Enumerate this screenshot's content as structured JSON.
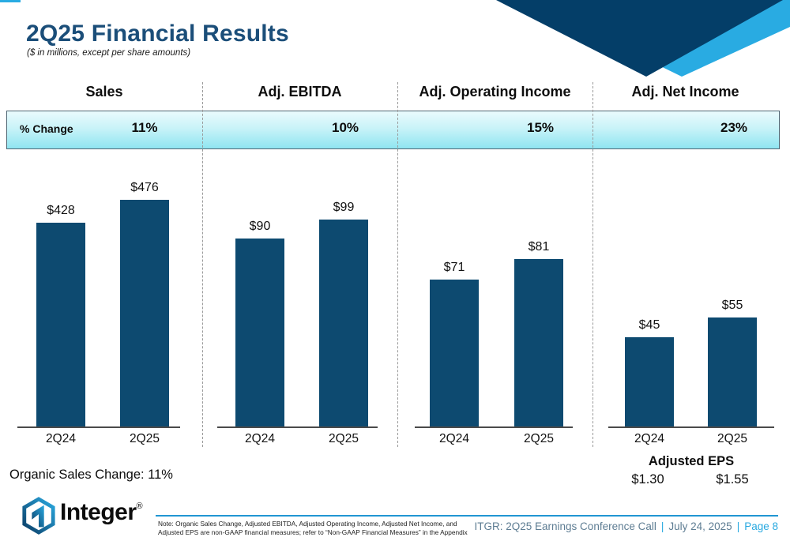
{
  "slide": {
    "title": "2Q25 Financial Results",
    "subtitle": "($ in millions, except per share amounts)"
  },
  "change_row": {
    "label": "% Change"
  },
  "chart_data": [
    {
      "type": "bar",
      "title": "Sales",
      "pct_change": "11%",
      "categories": [
        "2Q24",
        "2Q25"
      ],
      "values": [
        428,
        476
      ],
      "labels": [
        "$428",
        "$476"
      ],
      "ylim": [
        0,
        500
      ],
      "grid": false
    },
    {
      "type": "bar",
      "title": "Adj. EBITDA",
      "pct_change": "10%",
      "categories": [
        "2Q24",
        "2Q25"
      ],
      "values": [
        90,
        99
      ],
      "labels": [
        "$90",
        "$99"
      ],
      "ylim": [
        0,
        110
      ],
      "grid": false
    },
    {
      "type": "bar",
      "title": "Adj. Operating Income",
      "pct_change": "15%",
      "categories": [
        "2Q24",
        "2Q25"
      ],
      "values": [
        71,
        81
      ],
      "labels": [
        "$71",
        "$81"
      ],
      "ylim": [
        0,
        90
      ],
      "grid": false
    },
    {
      "type": "bar",
      "title": "Adj. Net Income",
      "pct_change": "23%",
      "categories": [
        "2Q24",
        "2Q25"
      ],
      "values": [
        45,
        55
      ],
      "labels": [
        "$45",
        "$55"
      ],
      "ylim": [
        0,
        60
      ],
      "grid": false
    }
  ],
  "annotations": {
    "organic_sales": "Organic Sales Change: 11%",
    "adjusted_eps_title": "Adjusted EPS",
    "adjusted_eps_values": [
      "$1.30",
      "$1.55"
    ]
  },
  "footer": {
    "logo_text": "Integer",
    "logo_reg": "®",
    "note_line1": "Note: Organic Sales Change, Adjusted EBITDA, Adjusted Operating Income, Adjusted Net Income, and",
    "note_line2": "Adjusted EPS are non-GAAP financial measures; refer to “Non-GAAP Financial Measures” in the Appendix",
    "right": {
      "event": "ITGR: 2Q25 Earnings Conference Call",
      "sep": "|",
      "date": "July 24, 2025",
      "page": "Page 8"
    }
  },
  "colors": {
    "bar": "#0d4a70",
    "triangle_navy": "#043e68",
    "triangle_cyan": "#29abe2",
    "title_blue": "#1b4e79",
    "band_top": "#eafbfd",
    "band_bottom": "#8fe5f1",
    "footer_text": "#5e7d93",
    "accent_cyan": "#29a9e0"
  }
}
